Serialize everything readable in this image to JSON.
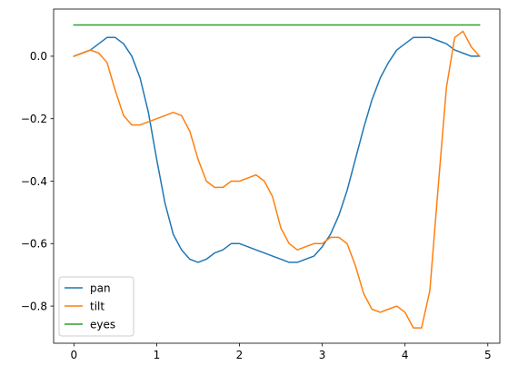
{
  "chart_data": {
    "type": "line",
    "title": "",
    "xlabel": "",
    "ylabel": "",
    "xlim": [
      -0.245,
      5.145
    ],
    "ylim": [
      -0.919,
      0.151
    ],
    "xticks": [
      0,
      1,
      2,
      3,
      4,
      5
    ],
    "xtick_labels": [
      "0",
      "1",
      "2",
      "3",
      "4",
      "5"
    ],
    "yticks": [
      0.0,
      -0.2,
      -0.4,
      -0.6,
      -0.8
    ],
    "ytick_labels": [
      "0.0",
      "−0.2",
      "−0.4",
      "−0.6",
      "−0.8"
    ],
    "grid": false,
    "legend_position": "lower-left",
    "x": [
      0.0,
      0.1,
      0.2,
      0.3,
      0.4,
      0.5,
      0.6,
      0.7,
      0.8,
      0.9,
      1.0,
      1.1,
      1.2,
      1.3,
      1.4,
      1.5,
      1.6,
      1.7,
      1.8,
      1.9,
      2.0,
      2.1,
      2.2,
      2.3,
      2.4,
      2.5,
      2.6,
      2.7,
      2.8,
      2.9,
      3.0,
      3.1,
      3.2,
      3.3,
      3.4,
      3.5,
      3.6,
      3.7,
      3.8,
      3.9,
      4.0,
      4.1,
      4.2,
      4.3,
      4.4,
      4.5,
      4.6,
      4.7,
      4.8,
      4.9
    ],
    "series": [
      {
        "name": "pan",
        "color": "#1f77b4",
        "values": [
          0.0,
          0.01,
          0.02,
          0.04,
          0.06,
          0.06,
          0.04,
          0.0,
          -0.07,
          -0.18,
          -0.33,
          -0.47,
          -0.57,
          -0.62,
          -0.65,
          -0.66,
          -0.65,
          -0.63,
          -0.62,
          -0.6,
          -0.6,
          -0.61,
          -0.62,
          -0.63,
          -0.64,
          -0.65,
          -0.66,
          -0.66,
          -0.65,
          -0.64,
          -0.61,
          -0.57,
          -0.51,
          -0.43,
          -0.33,
          -0.23,
          -0.14,
          -0.07,
          -0.02,
          0.02,
          0.04,
          0.06,
          0.06,
          0.06,
          0.05,
          0.04,
          0.02,
          0.01,
          0.0,
          0.0
        ]
      },
      {
        "name": "tilt",
        "color": "#ff7f0e",
        "values": [
          0.0,
          0.01,
          0.02,
          0.01,
          -0.02,
          -0.11,
          -0.19,
          -0.22,
          -0.22,
          -0.21,
          -0.2,
          -0.19,
          -0.18,
          -0.19,
          -0.24,
          -0.33,
          -0.4,
          -0.42,
          -0.42,
          -0.4,
          -0.4,
          -0.39,
          -0.38,
          -0.4,
          -0.45,
          -0.55,
          -0.6,
          -0.62,
          -0.61,
          -0.6,
          -0.6,
          -0.58,
          -0.58,
          -0.6,
          -0.67,
          -0.76,
          -0.81,
          -0.82,
          -0.81,
          -0.8,
          -0.82,
          -0.87,
          -0.87,
          -0.75,
          -0.42,
          -0.1,
          0.06,
          0.08,
          0.03,
          0.0
        ]
      },
      {
        "name": "eyes",
        "color": "#2ca02c",
        "values": [
          0.1,
          0.1,
          0.1,
          0.1,
          0.1,
          0.1,
          0.1,
          0.1,
          0.1,
          0.1,
          0.1,
          0.1,
          0.1,
          0.1,
          0.1,
          0.1,
          0.1,
          0.1,
          0.1,
          0.1,
          0.1,
          0.1,
          0.1,
          0.1,
          0.1,
          0.1,
          0.1,
          0.1,
          0.1,
          0.1,
          0.1,
          0.1,
          0.1,
          0.1,
          0.1,
          0.1,
          0.1,
          0.1,
          0.1,
          0.1,
          0.1,
          0.1,
          0.1,
          0.1,
          0.1,
          0.1,
          0.1,
          0.1,
          0.1,
          0.1
        ]
      }
    ]
  }
}
